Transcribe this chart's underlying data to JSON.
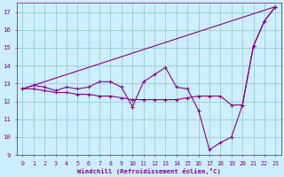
{
  "line1_x": [
    0,
    1,
    2,
    3,
    4,
    5,
    6,
    7,
    8,
    9,
    10,
    11,
    12,
    13,
    14,
    15,
    16,
    17,
    18,
    19,
    20,
    21,
    22,
    23
  ],
  "line1_y": [
    12.7,
    12.9,
    12.8,
    12.6,
    12.8,
    12.7,
    12.8,
    13.1,
    13.1,
    12.8,
    11.7,
    13.1,
    13.5,
    13.9,
    12.8,
    12.7,
    11.5,
    9.3,
    9.7,
    10.0,
    11.8,
    15.1,
    16.5,
    17.3
  ],
  "line2_x": [
    0,
    1,
    2,
    3,
    4,
    5,
    6,
    7,
    8,
    9,
    10,
    11,
    12,
    13,
    14,
    15,
    16,
    17,
    18,
    19,
    20,
    21,
    22,
    23
  ],
  "line2_y": [
    12.7,
    12.7,
    12.6,
    12.5,
    12.5,
    12.4,
    12.4,
    12.3,
    12.3,
    12.2,
    12.1,
    12.1,
    12.1,
    12.1,
    12.1,
    12.2,
    12.3,
    12.3,
    12.3,
    11.8,
    11.8,
    15.1,
    16.5,
    17.3
  ],
  "line3_x": [
    0,
    23
  ],
  "line3_y": [
    12.7,
    17.3
  ],
  "line_color": "#880088",
  "bg_color": "#cceeff",
  "grid_color": "#99cccc",
  "tick_color": "#880088",
  "xlabel": "Windchill (Refroidissement éolien,°C)",
  "xlabel_color": "#880088",
  "xlim": [
    -0.5,
    23.5
  ],
  "ylim": [
    9,
    17.5
  ],
  "yticks": [
    9,
    10,
    11,
    12,
    13,
    14,
    15,
    16,
    17
  ],
  "xticks": [
    0,
    1,
    2,
    3,
    4,
    5,
    6,
    7,
    8,
    9,
    10,
    11,
    12,
    13,
    14,
    15,
    16,
    17,
    18,
    19,
    20,
    21,
    22,
    23
  ]
}
